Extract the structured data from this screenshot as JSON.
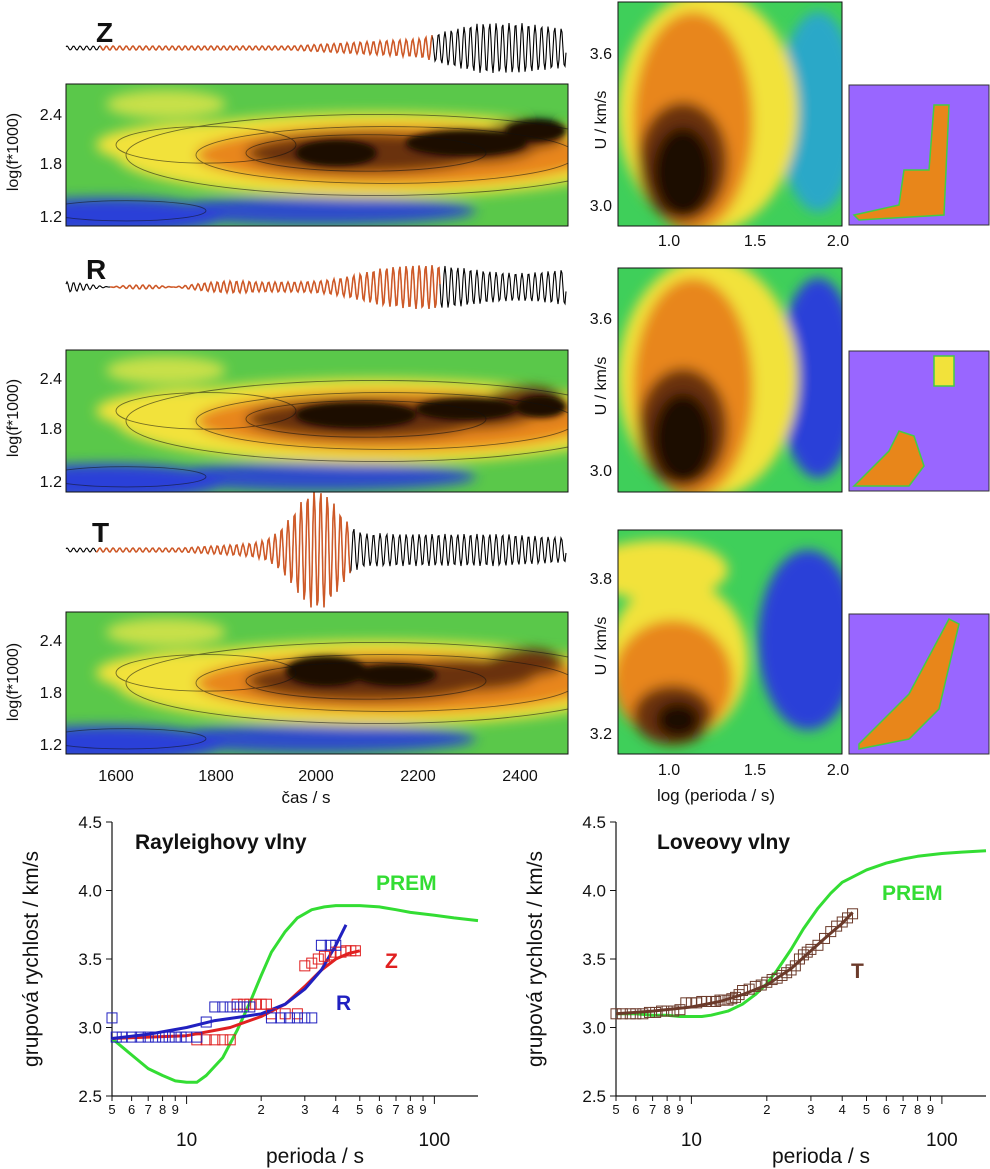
{
  "panels": {
    "Z": {
      "label": "Z"
    },
    "R": {
      "label": "R"
    },
    "T": {
      "label": "T"
    },
    "spectrogram": {
      "ylabel": "log(f*1000)",
      "yticks": [
        "2.4",
        "1.8",
        "1.2"
      ],
      "xlabel": "čas / s",
      "xticks": [
        "1600",
        "1800",
        "2000",
        "2200",
        "2400"
      ]
    },
    "velocity_maps": {
      "ylabel": "U / km/s",
      "xlabel": "log (perioda / s)",
      "xticks": [
        "1.0",
        "1.5",
        "2.0"
      ],
      "yticks_ZR": [
        "3.6",
        "3.0"
      ],
      "yticks_T": [
        "3.8",
        "3.2"
      ]
    }
  },
  "colors": {
    "dark": "#1a0b05",
    "brown": "#6b3010",
    "orange": "#e8861a",
    "yellow": "#f2e23a",
    "green": "#38c53a",
    "blue": "#2a3fd8",
    "violet": "#9966ff",
    "seismogram": "#000000",
    "highlight": "#e0602a",
    "prem": "#33dd33",
    "Z": "#e02020",
    "R": "#2020c0",
    "T": "#6b3a2a"
  },
  "chart_data": [
    {
      "type": "line",
      "title": "Rayleighovy vlny",
      "xlabel": "perioda / s",
      "ylabel": "grupová rychlost / km/s",
      "xscale": "log",
      "xlim": [
        5,
        150
      ],
      "ylim": [
        2.5,
        4.5
      ],
      "xtick_labels": [
        "5",
        "6",
        "7",
        "8",
        "9",
        "10",
        "2",
        "3",
        "4",
        "5",
        "6",
        "7",
        "8",
        "9",
        "100"
      ],
      "ytick_labels": [
        "2.5",
        "3.0",
        "3.5",
        "4.0",
        "4.5"
      ],
      "series": [
        {
          "name": "PREM",
          "color": "#33dd33",
          "x": [
            5,
            6,
            7,
            8,
            9,
            10,
            11,
            12,
            14,
            16,
            18,
            20,
            22,
            25,
            28,
            32,
            36,
            40,
            50,
            60,
            70,
            80,
            100,
            120,
            150
          ],
          "y": [
            2.92,
            2.8,
            2.7,
            2.65,
            2.61,
            2.6,
            2.6,
            2.65,
            2.78,
            2.98,
            3.18,
            3.38,
            3.55,
            3.7,
            3.8,
            3.86,
            3.88,
            3.89,
            3.89,
            3.88,
            3.86,
            3.84,
            3.82,
            3.8,
            3.78
          ]
        },
        {
          "name": "Z",
          "color": "#e02020",
          "x": [
            5,
            7,
            10,
            15,
            20,
            25,
            30,
            35,
            40,
            45,
            50
          ],
          "y": [
            2.92,
            2.93,
            2.94,
            3.0,
            3.08,
            3.17,
            3.3,
            3.42,
            3.5,
            3.54,
            3.56
          ]
        },
        {
          "name": "R",
          "color": "#2020c0",
          "x": [
            5,
            7,
            10,
            13,
            17,
            20,
            25,
            30,
            35,
            40,
            44
          ],
          "y": [
            2.92,
            2.95,
            3.0,
            3.05,
            3.08,
            3.1,
            3.17,
            3.28,
            3.42,
            3.6,
            3.75
          ]
        },
        {
          "name": "Z_points",
          "marker": "square",
          "color": "#e02020",
          "x": [
            11,
            12,
            13,
            14,
            15,
            16,
            17,
            18,
            19,
            20,
            21,
            22,
            25,
            28,
            30,
            32,
            34,
            36,
            38,
            40,
            42,
            44,
            46,
            48
          ],
          "y": [
            2.91,
            2.91,
            2.91,
            2.91,
            2.91,
            3.17,
            3.17,
            3.17,
            3.17,
            3.17,
            3.17,
            3.1,
            3.1,
            3.1,
            3.45,
            3.47,
            3.5,
            3.52,
            3.53,
            3.55,
            3.55,
            3.56,
            3.56,
            3.56
          ]
        },
        {
          "name": "R_points",
          "marker": "square",
          "color": "#2020c0",
          "x": [
            5.0,
            5.2,
            5.5,
            6,
            6.5,
            7,
            7.5,
            8,
            8.5,
            9,
            9.5,
            10,
            11,
            12,
            13,
            14,
            15,
            16,
            17,
            18,
            22,
            24,
            26,
            28,
            30,
            32,
            35,
            38,
            40
          ],
          "y": [
            3.07,
            2.93,
            2.93,
            2.93,
            2.93,
            2.93,
            2.93,
            2.93,
            2.93,
            2.93,
            2.93,
            2.93,
            2.93,
            3.04,
            3.15,
            3.15,
            3.15,
            3.15,
            3.15,
            3.15,
            3.07,
            3.07,
            3.07,
            3.07,
            3.07,
            3.07,
            3.6,
            3.6,
            3.6
          ]
        }
      ],
      "annotations": [
        "PREM",
        "Z",
        "R"
      ]
    },
    {
      "type": "line",
      "title": "Loveovy vlny",
      "xlabel": "perioda / s",
      "ylabel": "grupová rychlost / km/s",
      "xscale": "log",
      "xlim": [
        5,
        150
      ],
      "ylim": [
        2.5,
        4.5
      ],
      "xtick_labels": [
        "5",
        "6",
        "7",
        "8",
        "9",
        "10",
        "2",
        "3",
        "4",
        "5",
        "6",
        "7",
        "8",
        "9",
        "100"
      ],
      "ytick_labels": [
        "2.5",
        "3.0",
        "3.5",
        "4.0",
        "4.5"
      ],
      "series": [
        {
          "name": "PREM",
          "color": "#33dd33",
          "x": [
            5,
            6,
            7,
            8,
            9,
            10,
            11,
            12,
            14,
            16,
            18,
            20,
            22,
            25,
            28,
            32,
            36,
            40,
            50,
            60,
            70,
            80,
            100,
            120,
            150
          ],
          "y": [
            3.1,
            3.1,
            3.09,
            3.09,
            3.08,
            3.08,
            3.08,
            3.09,
            3.12,
            3.17,
            3.24,
            3.32,
            3.42,
            3.57,
            3.72,
            3.87,
            3.98,
            4.06,
            4.15,
            4.2,
            4.23,
            4.25,
            4.27,
            4.28,
            4.29
          ]
        },
        {
          "name": "T",
          "color": "#6b3a2a",
          "x": [
            5,
            7,
            10,
            13,
            16,
            20,
            25,
            30,
            35,
            40,
            44
          ],
          "y": [
            3.1,
            3.12,
            3.15,
            3.19,
            3.24,
            3.31,
            3.43,
            3.56,
            3.67,
            3.76,
            3.84
          ]
        },
        {
          "name": "T_points",
          "marker": "square",
          "color": "#6b3a2a",
          "x": [
            5.0,
            5.3,
            5.7,
            6.0,
            6.4,
            6.8,
            7.2,
            7.6,
            8.0,
            8.5,
            9.0,
            9.5,
            10.0,
            10.5,
            11,
            11.5,
            12,
            12.5,
            13,
            13.5,
            14,
            14.5,
            15,
            15.5,
            16,
            17,
            18,
            19,
            20,
            21,
            22,
            23,
            24,
            25,
            26,
            27,
            28,
            29,
            30,
            32,
            34,
            36,
            38,
            40,
            42,
            44
          ],
          "y": [
            3.1,
            3.1,
            3.1,
            3.1,
            3.1,
            3.11,
            3.11,
            3.12,
            3.12,
            3.12,
            3.13,
            3.18,
            3.18,
            3.18,
            3.19,
            3.19,
            3.19,
            3.19,
            3.2,
            3.2,
            3.2,
            3.21,
            3.22,
            3.24,
            3.27,
            3.28,
            3.3,
            3.31,
            3.33,
            3.35,
            3.36,
            3.38,
            3.4,
            3.42,
            3.45,
            3.5,
            3.53,
            3.55,
            3.57,
            3.6,
            3.65,
            3.7,
            3.74,
            3.77,
            3.8,
            3.83
          ]
        }
      ],
      "annotations": [
        "PREM",
        "T"
      ]
    }
  ]
}
